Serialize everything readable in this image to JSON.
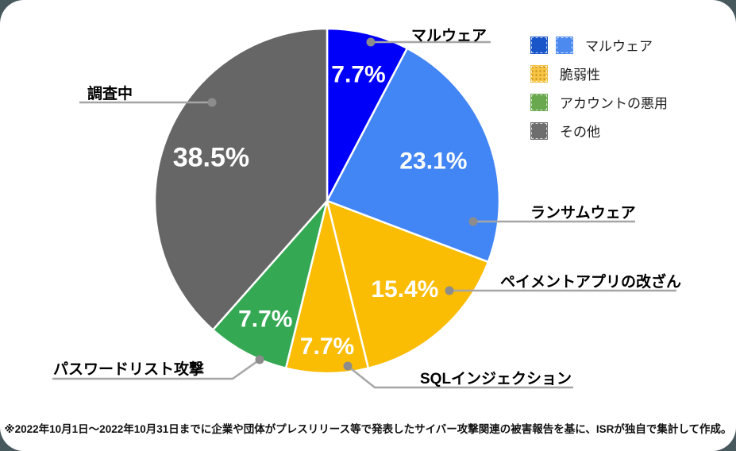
{
  "chart_data": {
    "type": "pie",
    "title": "",
    "start_angle_deg": 0,
    "direction": "clockwise",
    "slice_label_color": "#FFFFFF",
    "separator_color": "#FFFFFF",
    "slices": [
      {
        "label": "マルウェア",
        "value": 7.7,
        "display": "7.7%",
        "color": "#0000FA"
      },
      {
        "label": "ランサムウェア",
        "value": 23.1,
        "display": "23.1%",
        "color": "#4285F4"
      },
      {
        "label": "ペイメントアプリの改ざん",
        "value": 15.4,
        "display": "15.4%",
        "color": "#FBBC04"
      },
      {
        "label": "SQLインジェクション",
        "value": 7.7,
        "display": "7.7%",
        "color": "#FBBC04"
      },
      {
        "label": "パスワードリスト攻撃",
        "value": 7.7,
        "display": "7.7%",
        "color": "#34A853"
      },
      {
        "label": "調査中",
        "value": 38.5,
        "display": "38.5%",
        "color": "#666666"
      }
    ]
  },
  "legend": {
    "items": [
      {
        "label": "マルウェア",
        "colors": [
          "#1A56C9",
          "#4D8AF0"
        ],
        "textured": false
      },
      {
        "label": "脆弱性",
        "colors": [
          "#F6C544"
        ],
        "textured": true
      },
      {
        "label": "アカウントの悪用",
        "colors": [
          "#6AA84F"
        ],
        "textured": false
      },
      {
        "label": "その他",
        "colors": [
          "#6E6E6E"
        ],
        "textured": false
      }
    ]
  },
  "callout": {
    "line_color": "#A6A6A6",
    "dot_color": "#8C8C8C"
  },
  "footer": {
    "note": "※2022年10月1日～2022年10月31日までに企業や団体がプレスリリース等で発表したサイバー攻撃関連の被害報告を基に、ISRが独自で集計して作成。"
  }
}
